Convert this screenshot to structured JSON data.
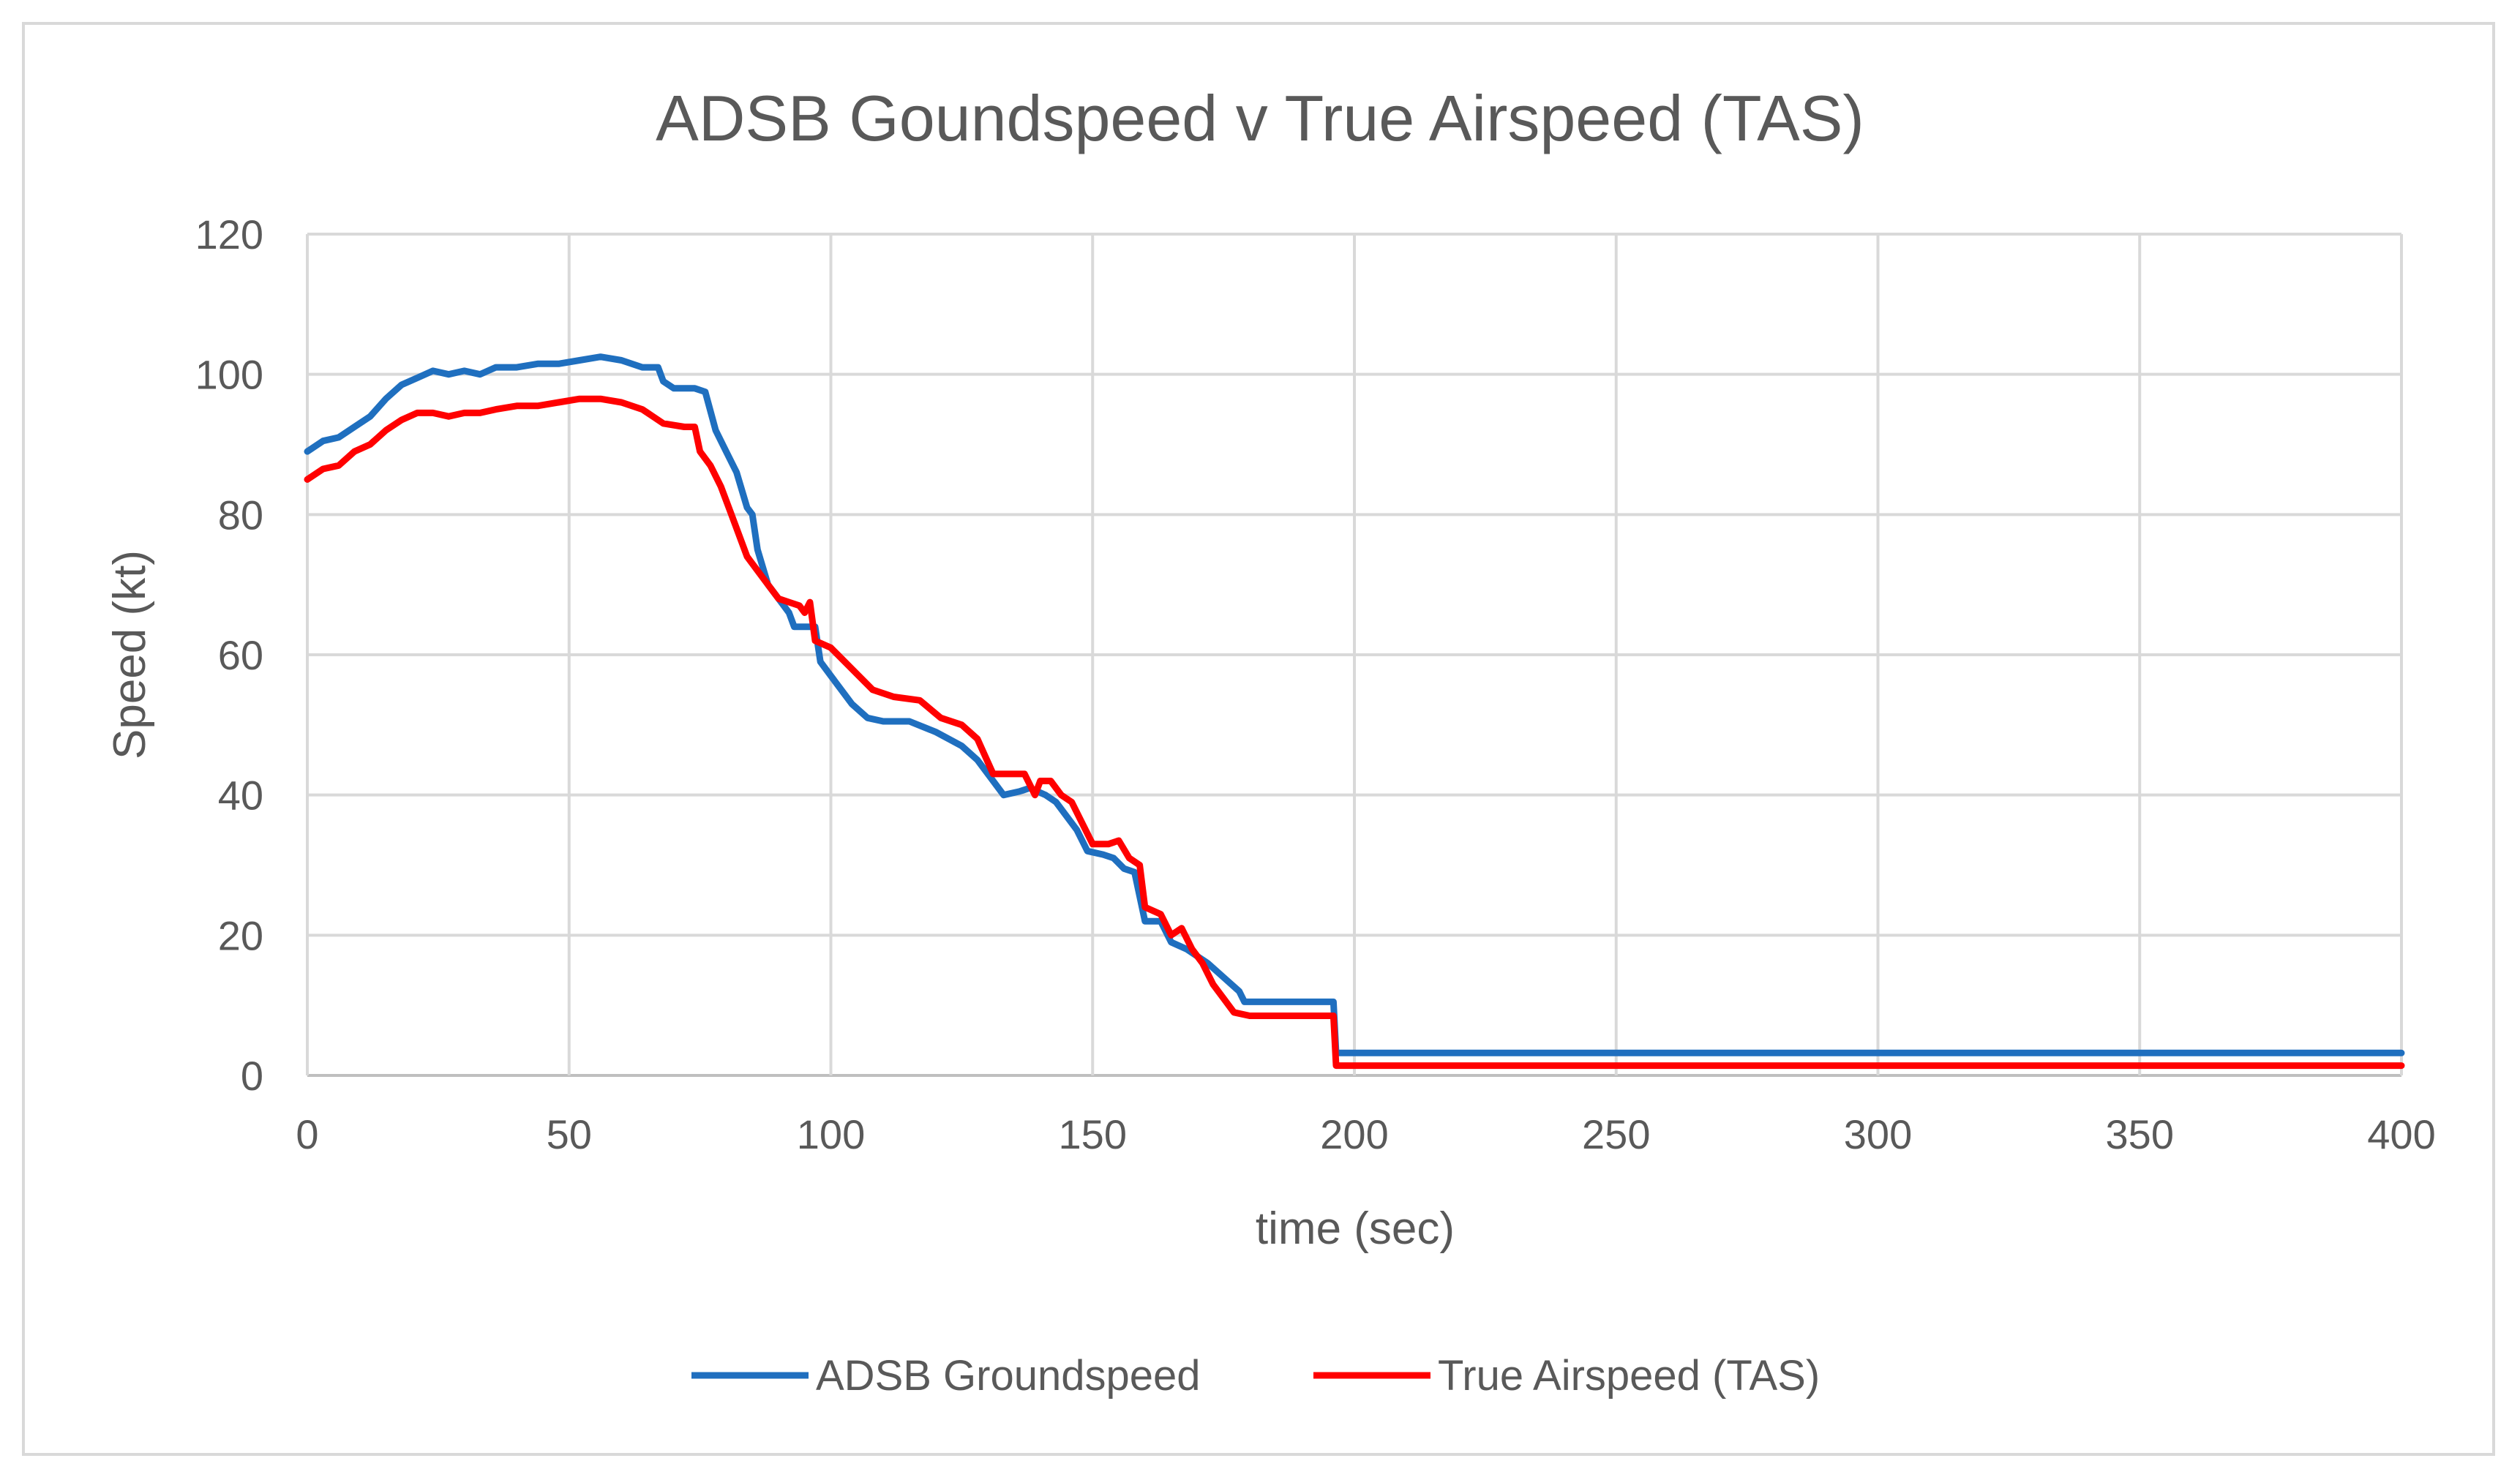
{
  "chart_data": {
    "type": "line",
    "title": "ADSB Goundspeed v True Airspeed (TAS)",
    "xlabel": "time (sec)",
    "ylabel": "Speed (kt)",
    "xlim": [
      0,
      400
    ],
    "ylim": [
      0,
      120
    ],
    "xticks": [
      "0",
      "50",
      "100",
      "150",
      "200",
      "250",
      "300",
      "350",
      "400"
    ],
    "yticks": [
      "0",
      "20",
      "40",
      "60",
      "80",
      "100",
      "120"
    ],
    "grid": true,
    "legend_position": "bottom",
    "series": [
      {
        "name": "ADSB Groundspeed",
        "color": "#1f6fbf",
        "points": [
          [
            0,
            89
          ],
          [
            3,
            90.5
          ],
          [
            6,
            91
          ],
          [
            9,
            92.5
          ],
          [
            12,
            94
          ],
          [
            15,
            96.5
          ],
          [
            18,
            98.5
          ],
          [
            21,
            99.5
          ],
          [
            24,
            100.5
          ],
          [
            27,
            100
          ],
          [
            30,
            100.5
          ],
          [
            33,
            100
          ],
          [
            36,
            101
          ],
          [
            40,
            101
          ],
          [
            44,
            101.5
          ],
          [
            48,
            101.5
          ],
          [
            52,
            102
          ],
          [
            56,
            102.5
          ],
          [
            60,
            102
          ],
          [
            64,
            101
          ],
          [
            67,
            101
          ],
          [
            68,
            99
          ],
          [
            70,
            98
          ],
          [
            74,
            98
          ],
          [
            76,
            97.5
          ],
          [
            78,
            92
          ],
          [
            80,
            89
          ],
          [
            82,
            86
          ],
          [
            84,
            81
          ],
          [
            85,
            80
          ],
          [
            86,
            75
          ],
          [
            88,
            70
          ],
          [
            90,
            68
          ],
          [
            92,
            66
          ],
          [
            93,
            64
          ],
          [
            95,
            64
          ],
          [
            97,
            64
          ],
          [
            98,
            59
          ],
          [
            100,
            57
          ],
          [
            104,
            53
          ],
          [
            107,
            51
          ],
          [
            110,
            50.5
          ],
          [
            115,
            50.5
          ],
          [
            120,
            49
          ],
          [
            125,
            47
          ],
          [
            128,
            45
          ],
          [
            131,
            42
          ],
          [
            133,
            40
          ],
          [
            136,
            40.5
          ],
          [
            138,
            41
          ],
          [
            141,
            40
          ],
          [
            143,
            39
          ],
          [
            145,
            37
          ],
          [
            147,
            35
          ],
          [
            149,
            32
          ],
          [
            152,
            31.5
          ],
          [
            154,
            31
          ],
          [
            156,
            29.5
          ],
          [
            158,
            29
          ],
          [
            160,
            22
          ],
          [
            163,
            22
          ],
          [
            165,
            19
          ],
          [
            168,
            18
          ],
          [
            170,
            17
          ],
          [
            172,
            16
          ],
          [
            175,
            14
          ],
          [
            178,
            12
          ],
          [
            179,
            10.5
          ],
          [
            183,
            10.5
          ],
          [
            196,
            10.5
          ],
          [
            196.5,
            3.2
          ],
          [
            220,
            3.2
          ],
          [
            300,
            3.2
          ],
          [
            400,
            3.2
          ]
        ]
      },
      {
        "name": "True Airspeed (TAS)",
        "color": "#ff0000",
        "points": [
          [
            0,
            85
          ],
          [
            3,
            86.5
          ],
          [
            6,
            87
          ],
          [
            9,
            89
          ],
          [
            12,
            90
          ],
          [
            15,
            92
          ],
          [
            18,
            93.5
          ],
          [
            21,
            94.5
          ],
          [
            24,
            94.5
          ],
          [
            27,
            94
          ],
          [
            30,
            94.5
          ],
          [
            33,
            94.5
          ],
          [
            36,
            95
          ],
          [
            40,
            95.5
          ],
          [
            44,
            95.5
          ],
          [
            48,
            96
          ],
          [
            52,
            96.5
          ],
          [
            56,
            96.5
          ],
          [
            60,
            96
          ],
          [
            64,
            95
          ],
          [
            66,
            94
          ],
          [
            68,
            93
          ],
          [
            72,
            92.5
          ],
          [
            74,
            92.5
          ],
          [
            75,
            89
          ],
          [
            77,
            87
          ],
          [
            79,
            84
          ],
          [
            81,
            80
          ],
          [
            83,
            76
          ],
          [
            84,
            74
          ],
          [
            86,
            72
          ],
          [
            88,
            70
          ],
          [
            90,
            68
          ],
          [
            92,
            67.5
          ],
          [
            94,
            67
          ],
          [
            95,
            66
          ],
          [
            96,
            67.5
          ],
          [
            97,
            62
          ],
          [
            100,
            61
          ],
          [
            104,
            58
          ],
          [
            108,
            55
          ],
          [
            112,
            54
          ],
          [
            117,
            53.5
          ],
          [
            121,
            51
          ],
          [
            125,
            50
          ],
          [
            128,
            48
          ],
          [
            131,
            43
          ],
          [
            134,
            43
          ],
          [
            137,
            43
          ],
          [
            139,
            40
          ],
          [
            140,
            42
          ],
          [
            142,
            42
          ],
          [
            144,
            40
          ],
          [
            146,
            39
          ],
          [
            148,
            36
          ],
          [
            150,
            33
          ],
          [
            153,
            33
          ],
          [
            155,
            33.5
          ],
          [
            157,
            31
          ],
          [
            159,
            30
          ],
          [
            160,
            24
          ],
          [
            163,
            23
          ],
          [
            165,
            20
          ],
          [
            167,
            21
          ],
          [
            169,
            18
          ],
          [
            171,
            16
          ],
          [
            173,
            13
          ],
          [
            175,
            11
          ],
          [
            177,
            9
          ],
          [
            180,
            8.5
          ],
          [
            190,
            8.5
          ],
          [
            196,
            8.5
          ],
          [
            196.5,
            1.4
          ],
          [
            220,
            1.4
          ],
          [
            300,
            1.4
          ],
          [
            400,
            1.4
          ]
        ]
      }
    ]
  }
}
